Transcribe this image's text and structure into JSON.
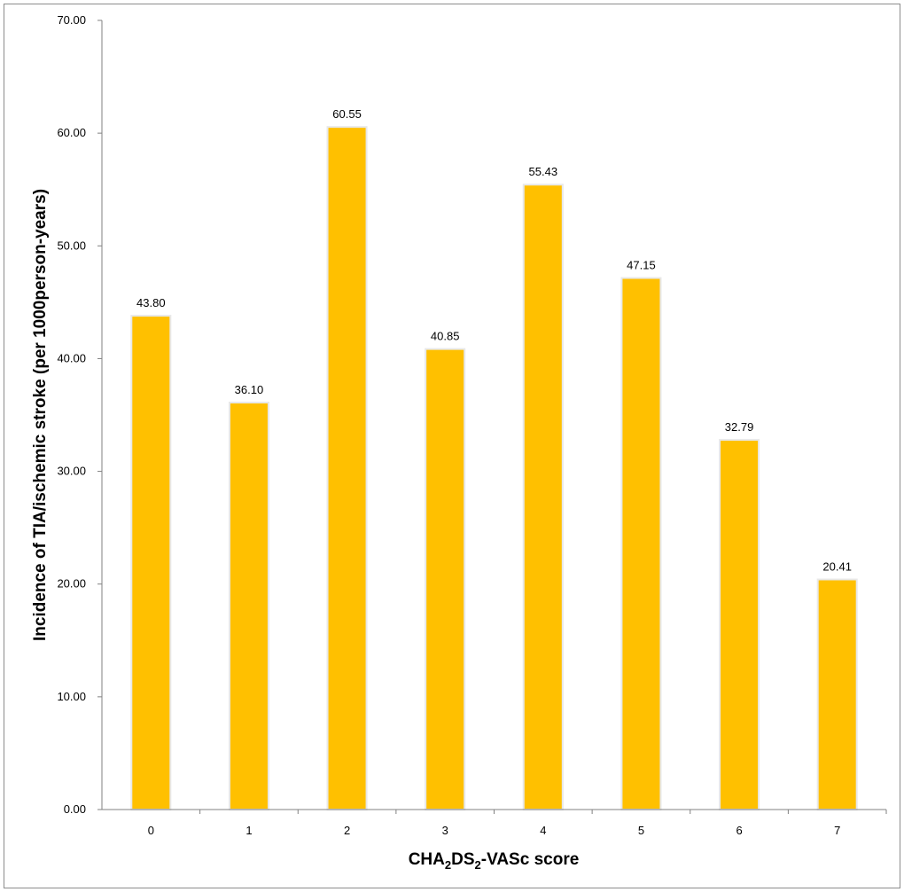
{
  "chart_data": {
    "type": "bar",
    "categories": [
      "0",
      "1",
      "2",
      "3",
      "4",
      "5",
      "6",
      "7"
    ],
    "values": [
      43.8,
      36.1,
      60.55,
      40.85,
      55.43,
      47.15,
      32.79,
      20.41
    ],
    "data_labels": [
      "43.80",
      "36.10",
      "60.55",
      "40.85",
      "55.43",
      "47.15",
      "32.79",
      "20.41"
    ],
    "ylabel": "Incidence of TIA/ischemic stroke (per 1000person-years)",
    "xlabel": {
      "part1": "CHA",
      "sub1": "2",
      "part2": "DS",
      "sub2": "2",
      "part3": "-VASc score"
    },
    "ylim": [
      0,
      70
    ],
    "yticks": [
      "0.00",
      "10.00",
      "20.00",
      "30.00",
      "40.00",
      "50.00",
      "60.00",
      "70.00"
    ],
    "grid": false,
    "legend": "none",
    "colors": {
      "bar": "#FFC000",
      "bar_edge": "#E8E8E8",
      "axis": "#808080"
    }
  }
}
